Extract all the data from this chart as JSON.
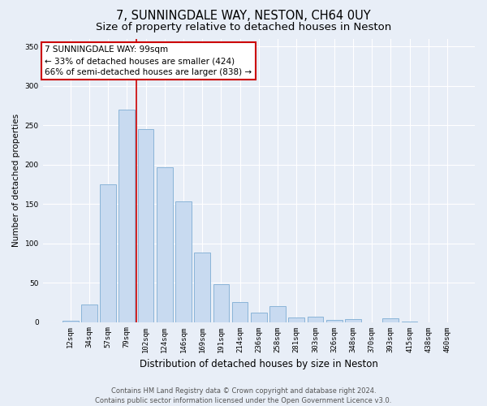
{
  "title": "7, SUNNINGDALE WAY, NESTON, CH64 0UY",
  "subtitle": "Size of property relative to detached houses in Neston",
  "xlabel": "Distribution of detached houses by size in Neston",
  "ylabel": "Number of detached properties",
  "bar_color": "#c8daf0",
  "bar_edge_color": "#8ab4d8",
  "background_color": "#e8eef7",
  "grid_color": "#ffffff",
  "categories": [
    "12sqm",
    "34sqm",
    "57sqm",
    "79sqm",
    "102sqm",
    "124sqm",
    "146sqm",
    "169sqm",
    "191sqm",
    "214sqm",
    "236sqm",
    "258sqm",
    "281sqm",
    "303sqm",
    "326sqm",
    "348sqm",
    "370sqm",
    "393sqm",
    "415sqm",
    "438sqm",
    "460sqm"
  ],
  "values": [
    2,
    22,
    175,
    270,
    245,
    197,
    153,
    88,
    48,
    25,
    12,
    20,
    6,
    7,
    3,
    4,
    0,
    5,
    1,
    0,
    0
  ],
  "vline_color": "#cc0000",
  "vline_x_index": 3.5,
  "annotation_text": "7 SUNNINGDALE WAY: 99sqm\n← 33% of detached houses are smaller (424)\n66% of semi-detached houses are larger (838) →",
  "annotation_box_color": "#ffffff",
  "annotation_box_edge_color": "#cc0000",
  "ylim": [
    0,
    360
  ],
  "yticks": [
    0,
    50,
    100,
    150,
    200,
    250,
    300,
    350
  ],
  "footnote": "Contains HM Land Registry data © Crown copyright and database right 2024.\nContains public sector information licensed under the Open Government Licence v3.0.",
  "title_fontsize": 10.5,
  "subtitle_fontsize": 9.5,
  "xlabel_fontsize": 8.5,
  "ylabel_fontsize": 7.5,
  "tick_fontsize": 6.5,
  "annotation_fontsize": 7.5,
  "footnote_fontsize": 6.0
}
